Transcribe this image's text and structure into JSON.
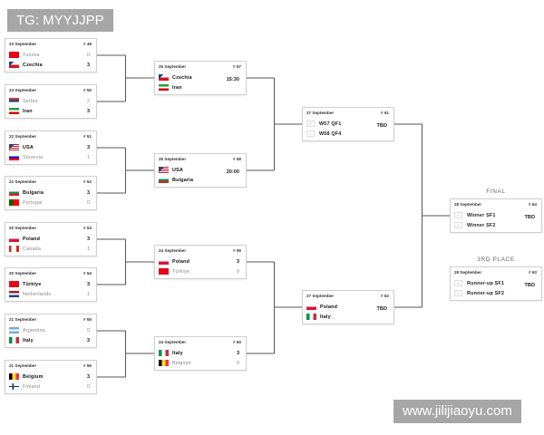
{
  "watermarks": {
    "top_left": "TG: MYYJJPP",
    "bottom_right": "www.jilijiaoyu.com"
  },
  "labels": {
    "final": "FINAL",
    "third_place": "3RD PLACE"
  },
  "matches": [
    {
      "id": "# 49",
      "date": "23 September",
      "teams": [
        {
          "name": "Tunisia",
          "score": "0"
        },
        {
          "name": "Czechia",
          "score": "3",
          "win": true
        }
      ]
    },
    {
      "id": "# 50",
      "date": "23 September",
      "teams": [
        {
          "name": "Serbia",
          "score": "2"
        },
        {
          "name": "Iran",
          "score": "3",
          "win": true
        }
      ]
    },
    {
      "id": "# 51",
      "date": "22 September",
      "teams": [
        {
          "name": "USA",
          "score": "3",
          "win": true
        },
        {
          "name": "Slovenia",
          "score": "1"
        }
      ]
    },
    {
      "id": "# 52",
      "date": "22 September",
      "teams": [
        {
          "name": "Bulgaria",
          "score": "3",
          "win": true
        },
        {
          "name": "Portugal",
          "score": "0"
        }
      ]
    },
    {
      "id": "# 53",
      "date": "20 September",
      "teams": [
        {
          "name": "Poland",
          "score": "3",
          "win": true
        },
        {
          "name": "Canada",
          "score": "1"
        }
      ]
    },
    {
      "id": "# 54",
      "date": "20 September",
      "teams": [
        {
          "name": "Türkiye",
          "score": "3",
          "win": true
        },
        {
          "name": "Netherlands",
          "score": "1"
        }
      ]
    },
    {
      "id": "# 55",
      "date": "21 September",
      "teams": [
        {
          "name": "Argentina",
          "score": "0"
        },
        {
          "name": "Italy",
          "score": "3",
          "win": true
        }
      ]
    },
    {
      "id": "# 56",
      "date": "21 September",
      "teams": [
        {
          "name": "Belgium",
          "score": "3",
          "win": true
        },
        {
          "name": "Finland",
          "score": "0"
        }
      ]
    },
    {
      "id": "# 57",
      "date": "25 September",
      "time": "15:30",
      "teams": [
        {
          "name": "Czechia",
          "win": true
        },
        {
          "name": "Iran",
          "win": true
        }
      ]
    },
    {
      "id": "# 58",
      "date": "25 September",
      "time": "20:00",
      "teams": [
        {
          "name": "USA",
          "win": true
        },
        {
          "name": "Bulgaria",
          "win": true
        }
      ]
    },
    {
      "id": "# 59",
      "date": "24 September",
      "teams": [
        {
          "name": "Poland",
          "score": "3",
          "win": true
        },
        {
          "name": "Türkiye",
          "score": "0"
        }
      ]
    },
    {
      "id": "# 60",
      "date": "24 September",
      "teams": [
        {
          "name": "Italy",
          "score": "3",
          "win": true
        },
        {
          "name": "Belgium",
          "score": "0"
        }
      ]
    },
    {
      "id": "# 61",
      "date": "27 September",
      "time": "TBD",
      "teams": [
        {
          "name": "W57 QF1",
          "placeholder": true
        },
        {
          "name": "W58 QF4",
          "placeholder": true
        }
      ]
    },
    {
      "id": "# 62",
      "date": "27 September",
      "time": "TBD",
      "teams": [
        {
          "name": "Poland",
          "win": true
        },
        {
          "name": "Italy",
          "win": true
        }
      ]
    },
    {
      "id": "# 64",
      "date": "28 September",
      "time": "TBD",
      "teams": [
        {
          "name": "Winner SF1",
          "placeholder": true
        },
        {
          "name": "Winner SF2",
          "placeholder": true
        }
      ]
    },
    {
      "id": "# 63",
      "date": "28 September",
      "time": "TBD",
      "teams": [
        {
          "name": "Runner-up SF1",
          "placeholder": true
        },
        {
          "name": "Runner-up SF2",
          "placeholder": true
        }
      ]
    }
  ]
}
